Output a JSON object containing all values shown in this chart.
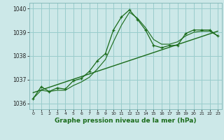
{
  "title": "Graphe pression niveau de la mer (hPa)",
  "background_color": "#cce8e8",
  "grid_color": "#99cccc",
  "line_color": "#1a6b1a",
  "xlim": [
    -0.5,
    23.5
  ],
  "ylim": [
    1035.75,
    1040.25
  ],
  "xticks": [
    0,
    1,
    2,
    3,
    4,
    5,
    6,
    7,
    8,
    9,
    10,
    11,
    12,
    13,
    14,
    15,
    16,
    17,
    18,
    19,
    20,
    21,
    22,
    23
  ],
  "yticks": [
    1036,
    1037,
    1038,
    1039,
    1040
  ],
  "series_jagged_x": [
    0,
    1,
    2,
    3,
    4,
    5,
    6,
    7,
    8,
    9,
    10,
    11,
    12,
    13,
    14,
    15,
    16,
    17,
    18,
    19,
    20,
    21,
    22,
    23
  ],
  "series_jagged_y": [
    1036.2,
    1036.7,
    1036.5,
    1036.65,
    1036.6,
    1036.95,
    1037.05,
    1037.35,
    1037.8,
    1038.1,
    1039.1,
    1039.65,
    1039.95,
    1039.55,
    1039.1,
    1038.45,
    1038.35,
    1038.45,
    1038.45,
    1038.95,
    1039.1,
    1039.1,
    1039.1,
    1038.85
  ],
  "series_smooth_x": [
    0,
    1,
    2,
    3,
    4,
    5,
    6,
    7,
    8,
    9,
    10,
    11,
    12,
    13,
    14,
    15,
    16,
    17,
    18,
    19,
    20,
    21,
    22,
    23
  ],
  "series_smooth_y": [
    1036.2,
    1036.55,
    1036.5,
    1036.55,
    1036.55,
    1036.75,
    1036.9,
    1037.1,
    1037.45,
    1037.85,
    1038.6,
    1039.3,
    1039.85,
    1039.6,
    1039.2,
    1038.7,
    1038.5,
    1038.5,
    1038.6,
    1038.85,
    1039.0,
    1039.05,
    1039.05,
    1038.85
  ],
  "trend_x": [
    0,
    23
  ],
  "trend_y": [
    1036.45,
    1039.05
  ]
}
